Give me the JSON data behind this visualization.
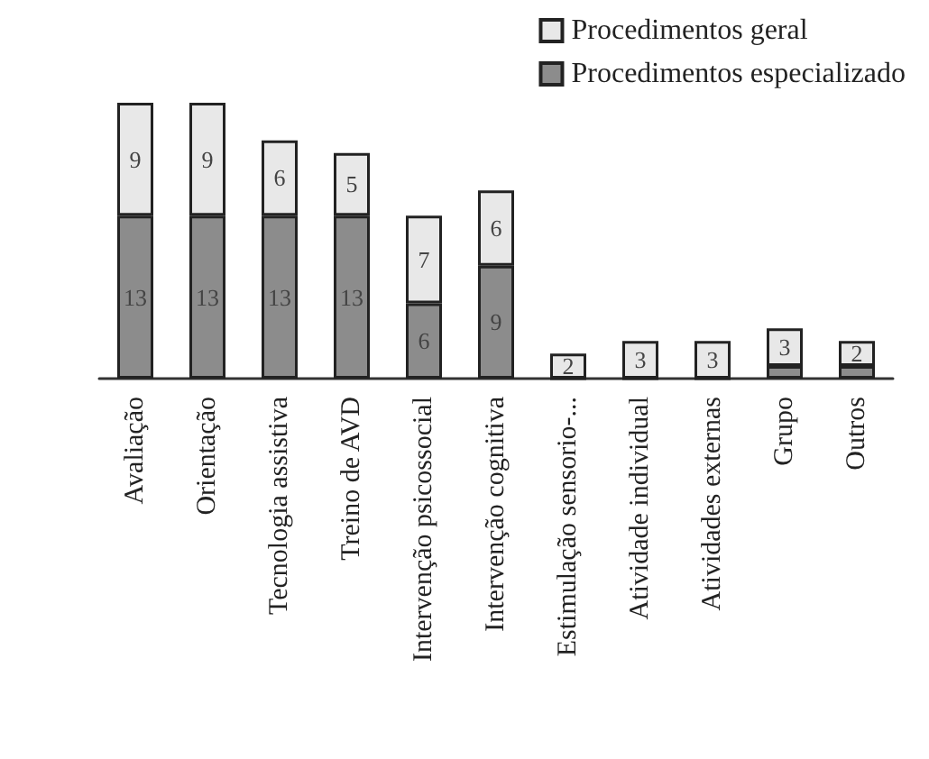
{
  "chart_data": {
    "type": "bar",
    "stacked": true,
    "legend": "top right",
    "categories": [
      "Avaliação",
      "Orientação",
      "Tecnologia assistiva",
      "Treino de AVD",
      "Intervenção psicossocial",
      "Intervenção cognitiva",
      "Estimulação sensorio-...",
      "Atividade individual",
      "Atividades externas",
      "Grupo",
      "Outros"
    ],
    "series": [
      {
        "name": "Procedimentos especializado",
        "color": "#8c8c8c",
        "values": [
          13,
          13,
          13,
          13,
          6,
          9,
          0,
          0,
          0,
          1,
          1
        ],
        "value_labels": [
          "13",
          "13",
          "13",
          "13",
          "6",
          "9",
          null,
          null,
          null,
          null,
          null
        ]
      },
      {
        "name": "Procedimentos geral",
        "color": "#e8e8e8",
        "values": [
          9,
          9,
          6,
          5,
          7,
          6,
          2,
          3,
          3,
          3,
          2
        ],
        "value_labels": [
          "9",
          "9",
          "6",
          "5",
          "7",
          "6",
          "2",
          "3",
          "3",
          "3",
          "2"
        ]
      }
    ]
  }
}
